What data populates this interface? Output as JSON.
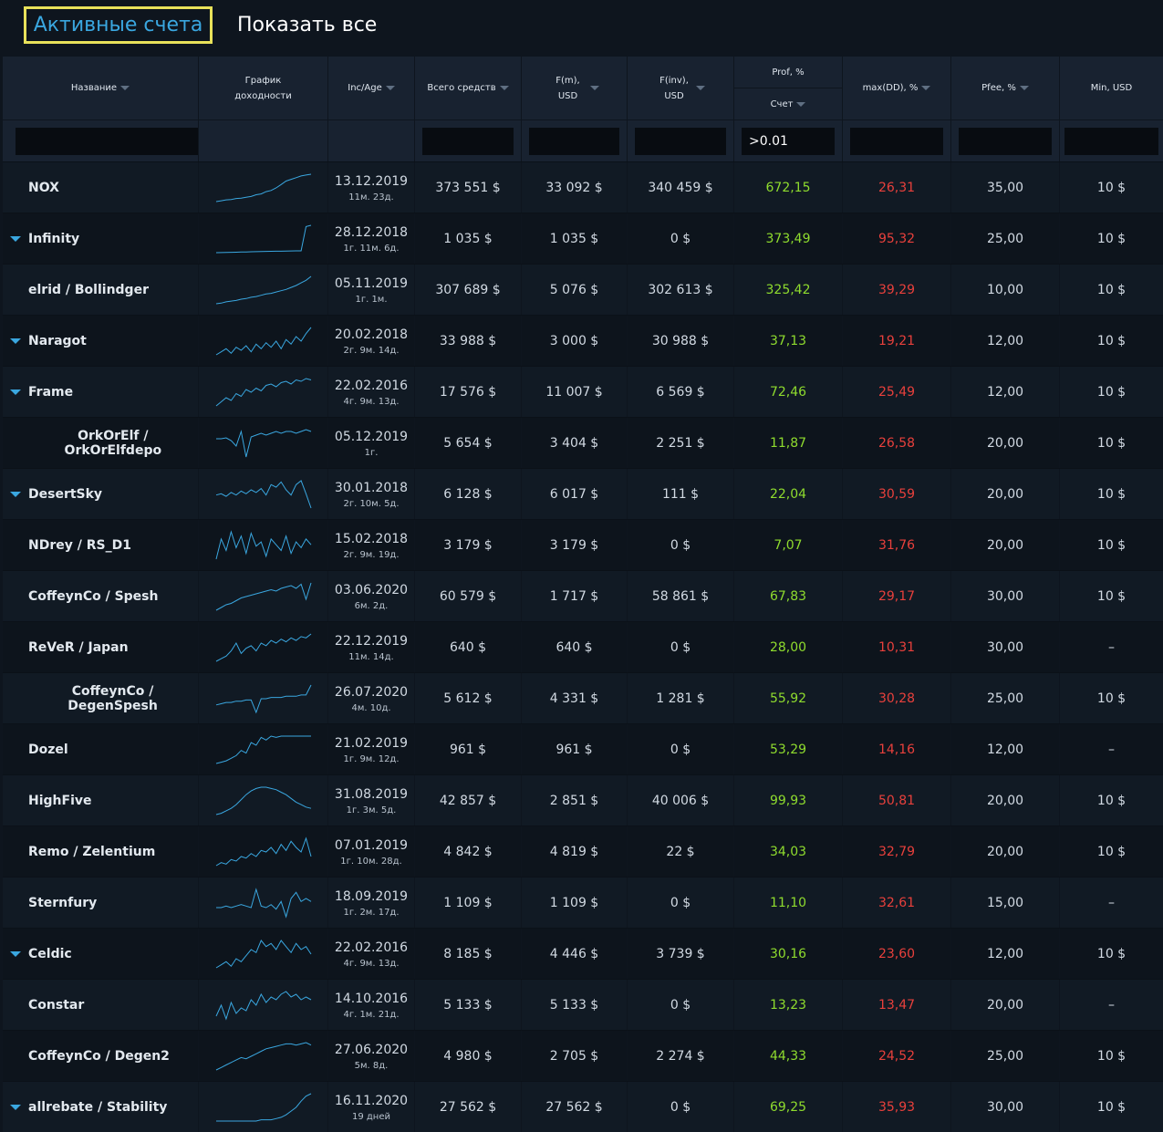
{
  "tabs": {
    "active": "Активные счета",
    "all": "Показать все"
  },
  "header": {
    "name": "Название",
    "chart": "График доходности",
    "inc_age": "Inc/Age",
    "total": "Всего средств",
    "fm": "F(m), USD",
    "finv": "F(inv), USD",
    "prof_top": "Prof, %",
    "prof_bottom": "Счет",
    "maxdd": "max(DD), %",
    "pfee": "Pfee, %",
    "min": "Min, USD"
  },
  "filters": {
    "prof_value": ">0.01"
  },
  "colors": {
    "accent": "#3aa7e0",
    "profit": "#8fdc2e",
    "drawdown": "#e8403c",
    "highlight": "#e8e15a"
  },
  "rows": [
    {
      "name": "NOX",
      "expand": false,
      "date": "13.12.2019",
      "age": "11м. 23д.",
      "total": "373 551 $",
      "fm": "33 092 $",
      "finv": "340 459 $",
      "prof": "672,15",
      "dd": "26,31",
      "pfee": "35,00",
      "min": "10 $",
      "spark": [
        10,
        10.5,
        11,
        11.2,
        11.8,
        12,
        12.5,
        13,
        14,
        14.5,
        15.8,
        16.5,
        18,
        20,
        22,
        23,
        24,
        25,
        25.5,
        26
      ]
    },
    {
      "name": "Infinity",
      "expand": true,
      "date": "28.12.2018",
      "age": "1г. 11м. 6д.",
      "total": "1 035 $",
      "fm": "1 035 $",
      "finv": "0 $",
      "prof": "373,49",
      "dd": "95,32",
      "pfee": "25,00",
      "min": "10 $",
      "spark": [
        5,
        5.1,
        5.2,
        5.3,
        5.4,
        5.5,
        5.6,
        5.7,
        5.8,
        5.9,
        6,
        6.1,
        6.2,
        6.2,
        6.3,
        6.4,
        6.5,
        6.5,
        26,
        27
      ]
    },
    {
      "name": "elrid / Bollindger",
      "expand": false,
      "date": "05.11.2019",
      "age": "1г. 1м.",
      "total": "307 689 $",
      "fm": "5 076 $",
      "finv": "302 613 $",
      "prof": "325,42",
      "dd": "39,29",
      "pfee": "10,00",
      "min": "10 $",
      "spark": [
        5,
        5.5,
        6.5,
        7,
        7.5,
        8.5,
        9,
        10,
        10.5,
        11.5,
        12.5,
        13,
        14,
        15,
        16,
        17.5,
        19,
        21,
        23,
        26
      ]
    },
    {
      "name": "Naragot",
      "expand": true,
      "date": "20.02.2018",
      "age": "2г. 9м. 14д.",
      "total": "33 988 $",
      "fm": "3 000 $",
      "finv": "30 988 $",
      "prof": "37,13",
      "dd": "19,21",
      "pfee": "12,00",
      "min": "10 $",
      "spark": [
        8,
        10,
        12,
        9,
        13,
        11,
        14,
        10,
        15,
        12,
        16,
        13,
        17,
        12,
        18,
        15,
        20,
        17,
        22,
        26
      ]
    },
    {
      "name": "Frame",
      "expand": true,
      "date": "22.02.2016",
      "age": "4г. 9м. 13д.",
      "total": "17 576 $",
      "fm": "11 007 $",
      "finv": "6 569 $",
      "prof": "72,46",
      "dd": "25,49",
      "pfee": "12,00",
      "min": "10 $",
      "spark": [
        6,
        9,
        12,
        10,
        15,
        13,
        18,
        16,
        19,
        17,
        21,
        22,
        20,
        23,
        24,
        22,
        25,
        24,
        26,
        25
      ]
    },
    {
      "name": "OrkOrElf / OrkOrElfdepo",
      "expand": false,
      "date": "05.12.2019",
      "age": "1г.",
      "total": "5 654 $",
      "fm": "3 404 $",
      "finv": "2 251 $",
      "prof": "11,87",
      "dd": "26,58",
      "pfee": "20,00",
      "min": "10 $",
      "spark": [
        18,
        18,
        18.5,
        17,
        14,
        22,
        8,
        19,
        20,
        21,
        20,
        21,
        22,
        21,
        22,
        22,
        21,
        22,
        23,
        22
      ]
    },
    {
      "name": "DesertSky",
      "expand": true,
      "date": "30.01.2018",
      "age": "2г. 10м. 5д.",
      "total": "6 128 $",
      "fm": "6 017 $",
      "finv": "111 $",
      "prof": "22,04",
      "dd": "30,59",
      "pfee": "20,00",
      "min": "10 $",
      "spark": [
        14,
        15,
        13,
        16,
        14,
        17,
        15,
        18,
        16,
        19,
        14,
        22,
        20,
        24,
        18,
        14,
        22,
        25,
        15,
        4
      ]
    },
    {
      "name": "NDrey / RS_D1",
      "expand": false,
      "date": "15.02.2018",
      "age": "2г. 9м. 19д.",
      "total": "3 179 $",
      "fm": "3 179 $",
      "finv": "0 $",
      "prof": "7,07",
      "dd": "31,76",
      "pfee": "20,00",
      "min": "10 $",
      "spark": [
        6,
        20,
        12,
        25,
        14,
        22,
        10,
        24,
        15,
        18,
        8,
        20,
        16,
        12,
        22,
        10,
        18,
        14,
        20,
        16
      ]
    },
    {
      "name": "CoffeynCo / Spesh",
      "expand": false,
      "date": "03.06.2020",
      "age": "6м. 2д.",
      "total": "60 579 $",
      "fm": "1 717 $",
      "finv": "58 861 $",
      "prof": "67,83",
      "dd": "29,17",
      "pfee": "30,00",
      "min": "10 $",
      "spark": [
        6,
        8,
        10,
        11,
        13,
        15,
        16,
        17,
        18,
        19,
        20,
        21,
        20,
        22,
        23,
        24,
        22,
        25,
        14,
        26
      ]
    },
    {
      "name": "ReVeR / Japan",
      "expand": false,
      "date": "22.12.2019",
      "age": "11м. 14д.",
      "total": "640 $",
      "fm": "640 $",
      "finv": "0 $",
      "prof": "28,00",
      "dd": "10,31",
      "pfee": "30,00",
      "min": "–",
      "spark": [
        4,
        6,
        8,
        12,
        18,
        10,
        14,
        16,
        12,
        18,
        16,
        20,
        18,
        21,
        19,
        22,
        20,
        23,
        22,
        25
      ]
    },
    {
      "name": "CoffeynCo / DegenSpesh",
      "expand": false,
      "date": "26.07.2020",
      "age": "4м. 10д.",
      "total": "5 612 $",
      "fm": "4 331 $",
      "finv": "1 281 $",
      "prof": "55,92",
      "dd": "30,28",
      "pfee": "25,00",
      "min": "10 $",
      "spark": [
        10,
        11,
        12,
        12,
        13,
        13,
        14,
        14,
        4,
        15,
        15,
        16,
        16,
        16,
        17,
        17,
        17,
        18,
        18,
        26
      ]
    },
    {
      "name": "Dozel",
      "expand": false,
      "date": "21.02.2019",
      "age": "1г. 9м. 12д.",
      "total": "961 $",
      "fm": "961 $",
      "finv": "0 $",
      "prof": "53,29",
      "dd": "14,16",
      "pfee": "12,00",
      "min": "–",
      "spark": [
        4,
        5,
        6,
        8,
        10,
        14,
        12,
        20,
        18,
        24,
        22,
        25,
        24,
        25,
        25,
        25,
        25,
        25,
        25,
        25
      ]
    },
    {
      "name": "HighFive",
      "expand": false,
      "date": "31.08.2019",
      "age": "1г. 3м. 5д.",
      "total": "42 857 $",
      "fm": "2 851 $",
      "finv": "40 006 $",
      "prof": "99,93",
      "dd": "50,81",
      "pfee": "20,00",
      "min": "10 $",
      "spark": [
        4,
        5,
        7,
        9,
        12,
        16,
        20,
        23,
        25,
        26,
        26,
        25,
        24,
        22,
        20,
        17,
        14,
        12,
        10,
        9
      ]
    },
    {
      "name": "Remo / Zelentium",
      "expand": false,
      "date": "07.01.2019",
      "age": "1г. 10м. 28д.",
      "total": "4 842 $",
      "fm": "4 819 $",
      "finv": "22 $",
      "prof": "34,03",
      "dd": "32,79",
      "pfee": "20,00",
      "min": "10 $",
      "spark": [
        6,
        8,
        7,
        10,
        9,
        12,
        11,
        14,
        12,
        16,
        15,
        18,
        14,
        20,
        16,
        22,
        18,
        15,
        24,
        12
      ]
    },
    {
      "name": "Sternfury",
      "expand": false,
      "date": "18.09.2019",
      "age": "1г. 2м. 17д.",
      "total": "1 109 $",
      "fm": "1 109 $",
      "finv": "0 $",
      "prof": "11,10",
      "dd": "32,61",
      "pfee": "15,00",
      "min": "–",
      "spark": [
        14,
        14,
        15,
        14,
        15,
        16,
        15,
        14,
        26,
        15,
        14,
        16,
        13,
        18,
        8,
        20,
        24,
        18,
        20,
        18
      ]
    },
    {
      "name": "Celdic",
      "expand": true,
      "date": "22.02.2016",
      "age": "4г. 9м. 13д.",
      "total": "8 185 $",
      "fm": "4 446 $",
      "finv": "3 739 $",
      "prof": "30,16",
      "dd": "23,60",
      "pfee": "12,00",
      "min": "10 $",
      "spark": [
        6,
        8,
        10,
        7,
        12,
        10,
        14,
        18,
        16,
        24,
        20,
        22,
        18,
        24,
        20,
        16,
        22,
        18,
        20,
        15
      ]
    },
    {
      "name": "Constar",
      "expand": false,
      "date": "14.10.2016",
      "age": "4г. 1м. 21д.",
      "total": "5 133 $",
      "fm": "5 133 $",
      "finv": "0 $",
      "prof": "13,23",
      "dd": "13,47",
      "pfee": "20,00",
      "min": "–",
      "spark": [
        8,
        16,
        6,
        18,
        10,
        14,
        12,
        20,
        16,
        24,
        18,
        22,
        20,
        24,
        26,
        22,
        24,
        20,
        22,
        20
      ]
    },
    {
      "name": "CoffeynCo / Degen2",
      "expand": false,
      "date": "27.06.2020",
      "age": "5м. 8д.",
      "total": "4 980 $",
      "fm": "2 705 $",
      "finv": "2 274 $",
      "prof": "44,33",
      "dd": "24,52",
      "pfee": "25,00",
      "min": "10 $",
      "spark": [
        4,
        6,
        8,
        10,
        12,
        14,
        13,
        15,
        17,
        19,
        21,
        22,
        23,
        24,
        25,
        25,
        24,
        25,
        26,
        24
      ]
    },
    {
      "name": "allrebate / Stability",
      "expand": true,
      "date": "16.11.2020",
      "age": "19 дней",
      "total": "27 562 $",
      "fm": "27 562 $",
      "finv": "0 $",
      "prof": "69,25",
      "dd": "35,93",
      "pfee": "30,00",
      "min": "10 $",
      "spark": [
        4,
        4,
        4,
        4,
        4,
        4,
        4,
        4,
        4,
        5,
        5,
        5,
        6,
        7,
        9,
        12,
        15,
        20,
        24,
        26
      ]
    }
  ]
}
